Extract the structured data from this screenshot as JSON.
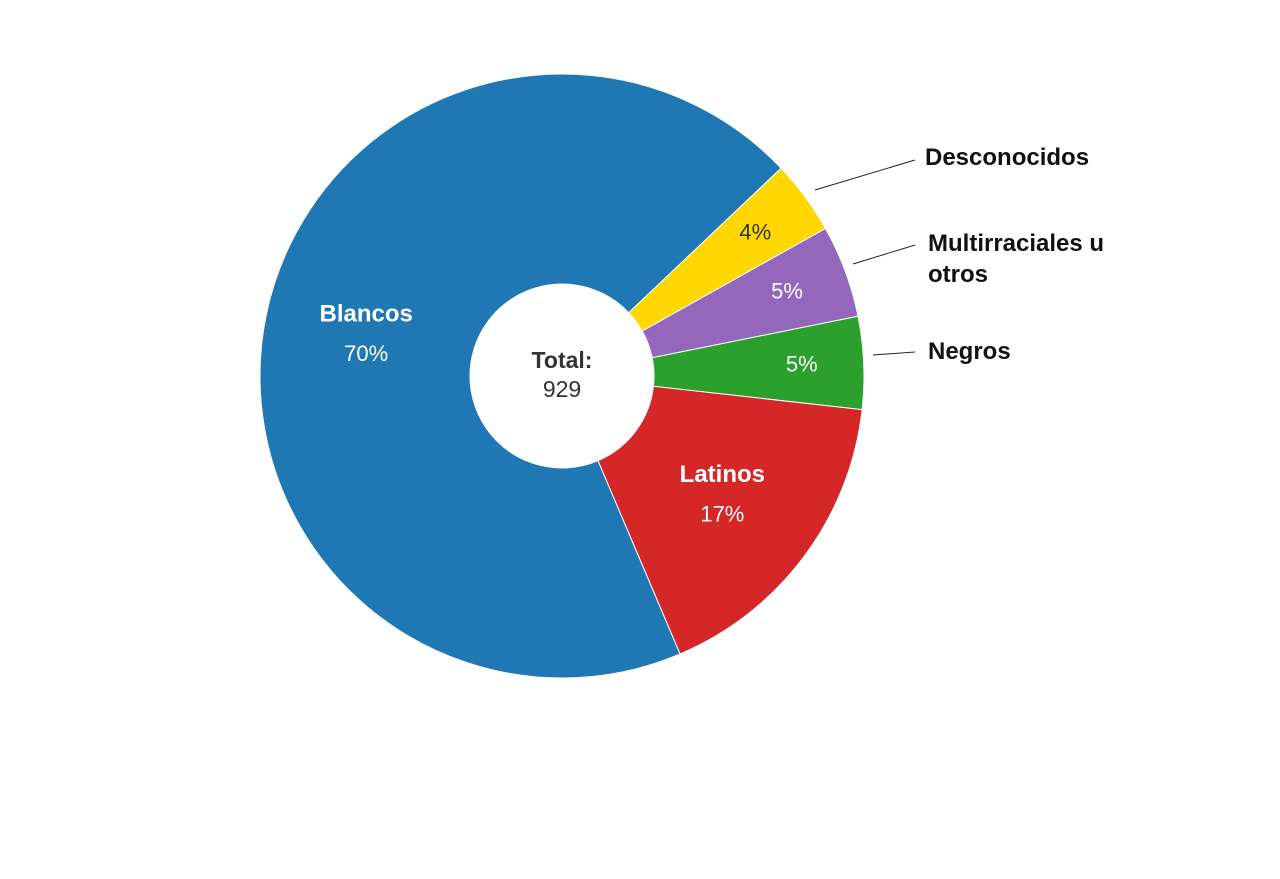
{
  "chart_data": {
    "type": "donut",
    "categories": [
      "Desconocidos",
      "Multirraciales u otros",
      "Negros",
      "Latinos",
      "Blancos"
    ],
    "values": [
      4,
      5,
      5,
      17,
      70
    ],
    "value_labels": [
      "4%",
      "5%",
      "5%",
      "17%",
      "70%"
    ],
    "colors": [
      "#ffd700",
      "#9467bd",
      "#2ca02c",
      "#d62728",
      "#1f77b4"
    ],
    "center_label": "Total:",
    "total": "929"
  }
}
